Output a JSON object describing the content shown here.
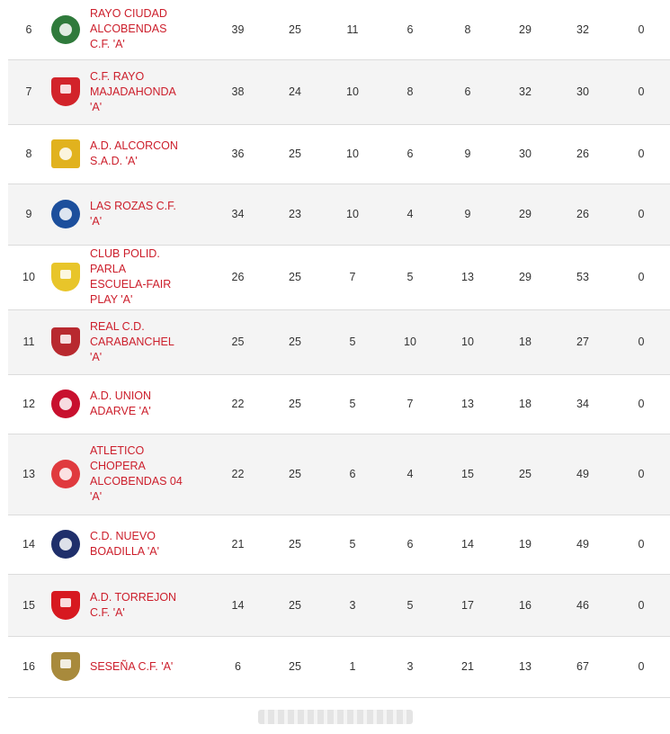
{
  "standings": {
    "rows": [
      {
        "pos": "6",
        "team": "RAYO CIUDAD ALCOBENDAS C.F. 'A'",
        "crest_icon": "rayo-ciudad-alcobendas-crest-icon",
        "crest_color": "#2f7a3b",
        "crest_shape": "round",
        "pts": "39",
        "pj": "25",
        "pg": "11",
        "pe": "6",
        "pp": "8",
        "gf": "29",
        "gc": "32",
        "san": "0"
      },
      {
        "pos": "7",
        "team": "C.F. RAYO MAJADAHONDA 'A'",
        "crest_icon": "rayo-majadahonda-crest-icon",
        "crest_color": "#d2232a",
        "crest_shape": "shield",
        "pts": "38",
        "pj": "24",
        "pg": "10",
        "pe": "8",
        "pp": "6",
        "gf": "32",
        "gc": "30",
        "san": "0"
      },
      {
        "pos": "8",
        "team": "A.D. ALCORCON S.A.D. 'A'",
        "crest_icon": "ad-alcorcon-crest-icon",
        "crest_color": "#e1b21e",
        "crest_shape": "square",
        "pts": "36",
        "pj": "25",
        "pg": "10",
        "pe": "6",
        "pp": "9",
        "gf": "30",
        "gc": "26",
        "san": "0"
      },
      {
        "pos": "9",
        "team": "LAS ROZAS C.F. 'A'",
        "crest_icon": "las-rozas-crest-icon",
        "crest_color": "#1c4f9c",
        "crest_shape": "round",
        "pts": "34",
        "pj": "23",
        "pg": "10",
        "pe": "4",
        "pp": "9",
        "gf": "29",
        "gc": "26",
        "san": "0"
      },
      {
        "pos": "10",
        "team": "CLUB POLID. PARLA ESCUELA-FAIR PLAY 'A'",
        "crest_icon": "parla-escuela-crest-icon",
        "crest_color": "#e8c52a",
        "crest_shape": "shield",
        "pts": "26",
        "pj": "25",
        "pg": "7",
        "pe": "5",
        "pp": "13",
        "gf": "29",
        "gc": "53",
        "san": "0"
      },
      {
        "pos": "11",
        "team": "REAL C.D. CARABANCHEL 'A'",
        "crest_icon": "real-carabanchel-crest-icon",
        "crest_color": "#b8292f",
        "crest_shape": "shield",
        "pts": "25",
        "pj": "25",
        "pg": "5",
        "pe": "10",
        "pp": "10",
        "gf": "18",
        "gc": "27",
        "san": "0"
      },
      {
        "pos": "12",
        "team": "A.D. UNION ADARVE 'A'",
        "crest_icon": "union-adarve-crest-icon",
        "crest_color": "#c8102e",
        "crest_shape": "round",
        "pts": "22",
        "pj": "25",
        "pg": "5",
        "pe": "7",
        "pp": "13",
        "gf": "18",
        "gc": "34",
        "san": "0"
      },
      {
        "pos": "13",
        "team": "ATLETICO CHOPERA ALCOBENDAS 04 'A'",
        "crest_icon": "atletico-chopera-crest-icon",
        "crest_color": "#e03a3e",
        "crest_shape": "round",
        "pts": "22",
        "pj": "25",
        "pg": "6",
        "pe": "4",
        "pp": "15",
        "gf": "25",
        "gc": "49",
        "san": "0"
      },
      {
        "pos": "14",
        "team": "C.D. NUEVO BOADILLA 'A'",
        "crest_icon": "nuevo-boadilla-crest-icon",
        "crest_color": "#1f2f6b",
        "crest_shape": "round",
        "pts": "21",
        "pj": "25",
        "pg": "5",
        "pe": "6",
        "pp": "14",
        "gf": "19",
        "gc": "49",
        "san": "0"
      },
      {
        "pos": "15",
        "team": "A.D. TORREJON C.F. 'A'",
        "crest_icon": "ad-torrejon-crest-icon",
        "crest_color": "#d71920",
        "crest_shape": "shield",
        "pts": "14",
        "pj": "25",
        "pg": "3",
        "pe": "5",
        "pp": "17",
        "gf": "16",
        "gc": "46",
        "san": "0"
      },
      {
        "pos": "16",
        "team": "SESEÑA C.F. 'A'",
        "crest_icon": "sesena-crest-icon",
        "crest_color": "#a88a3c",
        "crest_shape": "shield",
        "pts": "6",
        "pj": "25",
        "pg": "1",
        "pe": "3",
        "pp": "21",
        "gf": "13",
        "gc": "67",
        "san": "0"
      }
    ]
  },
  "theme": {
    "link_color": "#cc1e2b",
    "row_alt_color": "#f4f4f4",
    "divider_color": "#dcdcdc"
  }
}
